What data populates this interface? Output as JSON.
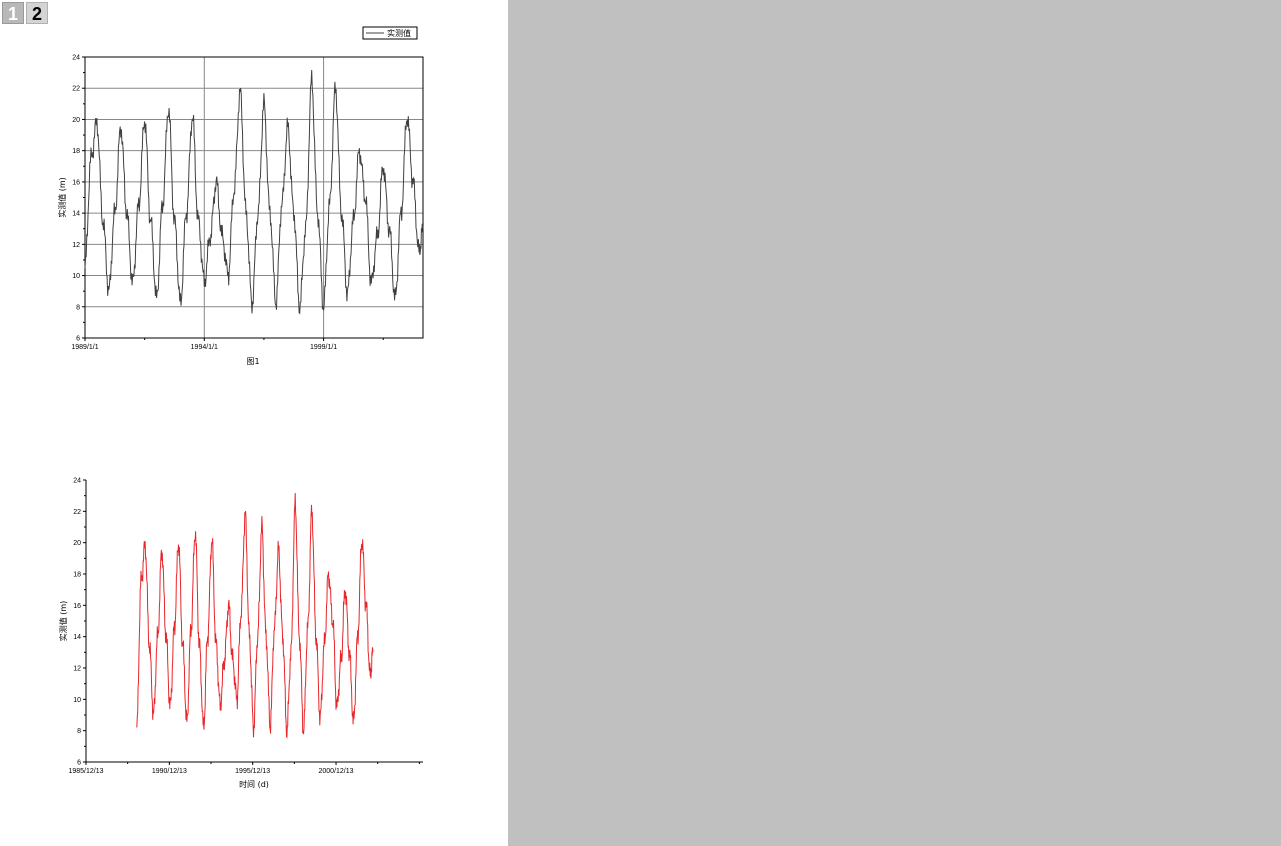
{
  "layers": {
    "tabs": [
      {
        "label": "1"
      },
      {
        "label": "2"
      }
    ]
  },
  "colors": {
    "background_area": "#c0c0c0",
    "series1_line": "#404040",
    "series2_line": "#e8262a"
  },
  "chart_data": [
    {
      "type": "line",
      "title": "",
      "caption": "图1",
      "xlabel": "",
      "ylabel": "实测值 (m)",
      "x_ticks": [
        "1989/1/1",
        "1994/1/1",
        "1999/1/1"
      ],
      "y_ticks": [
        6,
        8,
        10,
        12,
        14,
        16,
        18,
        20,
        22,
        24
      ],
      "xlim": [
        "1989/1/1",
        "2003/3/1"
      ],
      "ylim": [
        6,
        24
      ],
      "grid": true,
      "legend": {
        "position": "top-right",
        "entries": [
          "实测值"
        ]
      },
      "series": [
        {
          "name": "实测值",
          "color": "#404040",
          "x": [
            "1989/1",
            "1989/4",
            "1989/7",
            "1989/10",
            "1990/1",
            "1990/4",
            "1990/7",
            "1990/10",
            "1991/1",
            "1991/4",
            "1991/7",
            "1991/10",
            "1992/1",
            "1992/4",
            "1992/7",
            "1992/10",
            "1993/1",
            "1993/4",
            "1993/7",
            "1993/10",
            "1994/1",
            "1994/4",
            "1994/7",
            "1994/10",
            "1995/1",
            "1995/4",
            "1995/7",
            "1995/10",
            "1996/1",
            "1996/4",
            "1996/7",
            "1996/10",
            "1997/1",
            "1997/4",
            "1997/7",
            "1997/10",
            "1998/1",
            "1998/4",
            "1998/7",
            "1998/10",
            "1999/1",
            "1999/4",
            "1999/7",
            "1999/10",
            "2000/1",
            "2000/4",
            "2000/7",
            "2000/10",
            "2001/1",
            "2001/4",
            "2001/7",
            "2001/10",
            "2002/1",
            "2002/4",
            "2002/7",
            "2002/10",
            "2003/1",
            "2003/3"
          ],
          "values": [
            10.5,
            17.5,
            19.8,
            13.5,
            9,
            14,
            19.5,
            14,
            9.5,
            14.5,
            20,
            13.5,
            8.5,
            14.5,
            20.7,
            13.5,
            8.2,
            14,
            20.2,
            13.5,
            9.6,
            12.5,
            16,
            12.5,
            10,
            15.5,
            21.8,
            14,
            8.2,
            14,
            21,
            14,
            8.3,
            14.5,
            19.5,
            14,
            8,
            13,
            22.5,
            14,
            8,
            14.5,
            22,
            14,
            8.8,
            13.5,
            18,
            15,
            9.5,
            12.5,
            17,
            13,
            8.5,
            14,
            20.2,
            16,
            11.5,
            13
          ]
        }
      ]
    },
    {
      "type": "line",
      "title": "",
      "xlabel": "时间 (d)",
      "ylabel": "实测值 (m)",
      "x_ticks": [
        "1985/12/13",
        "1990/12/13",
        "1995/12/13",
        "2000/12/13"
      ],
      "y_ticks": [
        6,
        8,
        10,
        12,
        14,
        16,
        18,
        20,
        22,
        24
      ],
      "xlim": [
        "1985/12/13",
        "2006/3/1"
      ],
      "ylim": [
        6,
        24
      ],
      "grid": false,
      "series": [
        {
          "name": "",
          "color": "#e8262a",
          "x": [
            "1989/1",
            "1989/4",
            "1989/7",
            "1989/10",
            "1990/1",
            "1990/4",
            "1990/7",
            "1990/10",
            "1991/1",
            "1991/4",
            "1991/7",
            "1991/10",
            "1992/1",
            "1992/4",
            "1992/7",
            "1992/10",
            "1993/1",
            "1993/4",
            "1993/7",
            "1993/10",
            "1994/1",
            "1994/4",
            "1994/7",
            "1994/10",
            "1995/1",
            "1995/4",
            "1995/7",
            "1995/10",
            "1996/1",
            "1996/4",
            "1996/7",
            "1996/10",
            "1997/1",
            "1997/4",
            "1997/7",
            "1997/10",
            "1998/1",
            "1998/4",
            "1998/7",
            "1998/10",
            "1999/1",
            "1999/4",
            "1999/7",
            "1999/10",
            "2000/1",
            "2000/4",
            "2000/7",
            "2000/10",
            "2001/1",
            "2001/4",
            "2001/7",
            "2001/10",
            "2002/1",
            "2002/4",
            "2002/7",
            "2002/10",
            "2003/1",
            "2003/3"
          ],
          "values": [
            8.2,
            17.5,
            19.8,
            13.5,
            9,
            14,
            19.5,
            14,
            9.5,
            14.5,
            20,
            13.5,
            8.5,
            14.5,
            20.7,
            13.5,
            8.2,
            14,
            20.2,
            13.5,
            9.6,
            12.5,
            16,
            12.5,
            10,
            15.5,
            21.8,
            14,
            8.2,
            14,
            21,
            14,
            8.3,
            14.5,
            19.5,
            14,
            8,
            13,
            22.5,
            14,
            8,
            14.5,
            22,
            14,
            8.8,
            13.5,
            18,
            15,
            9.5,
            12.5,
            17,
            13,
            8.5,
            14,
            20.2,
            16,
            11.5,
            13
          ]
        }
      ]
    }
  ]
}
